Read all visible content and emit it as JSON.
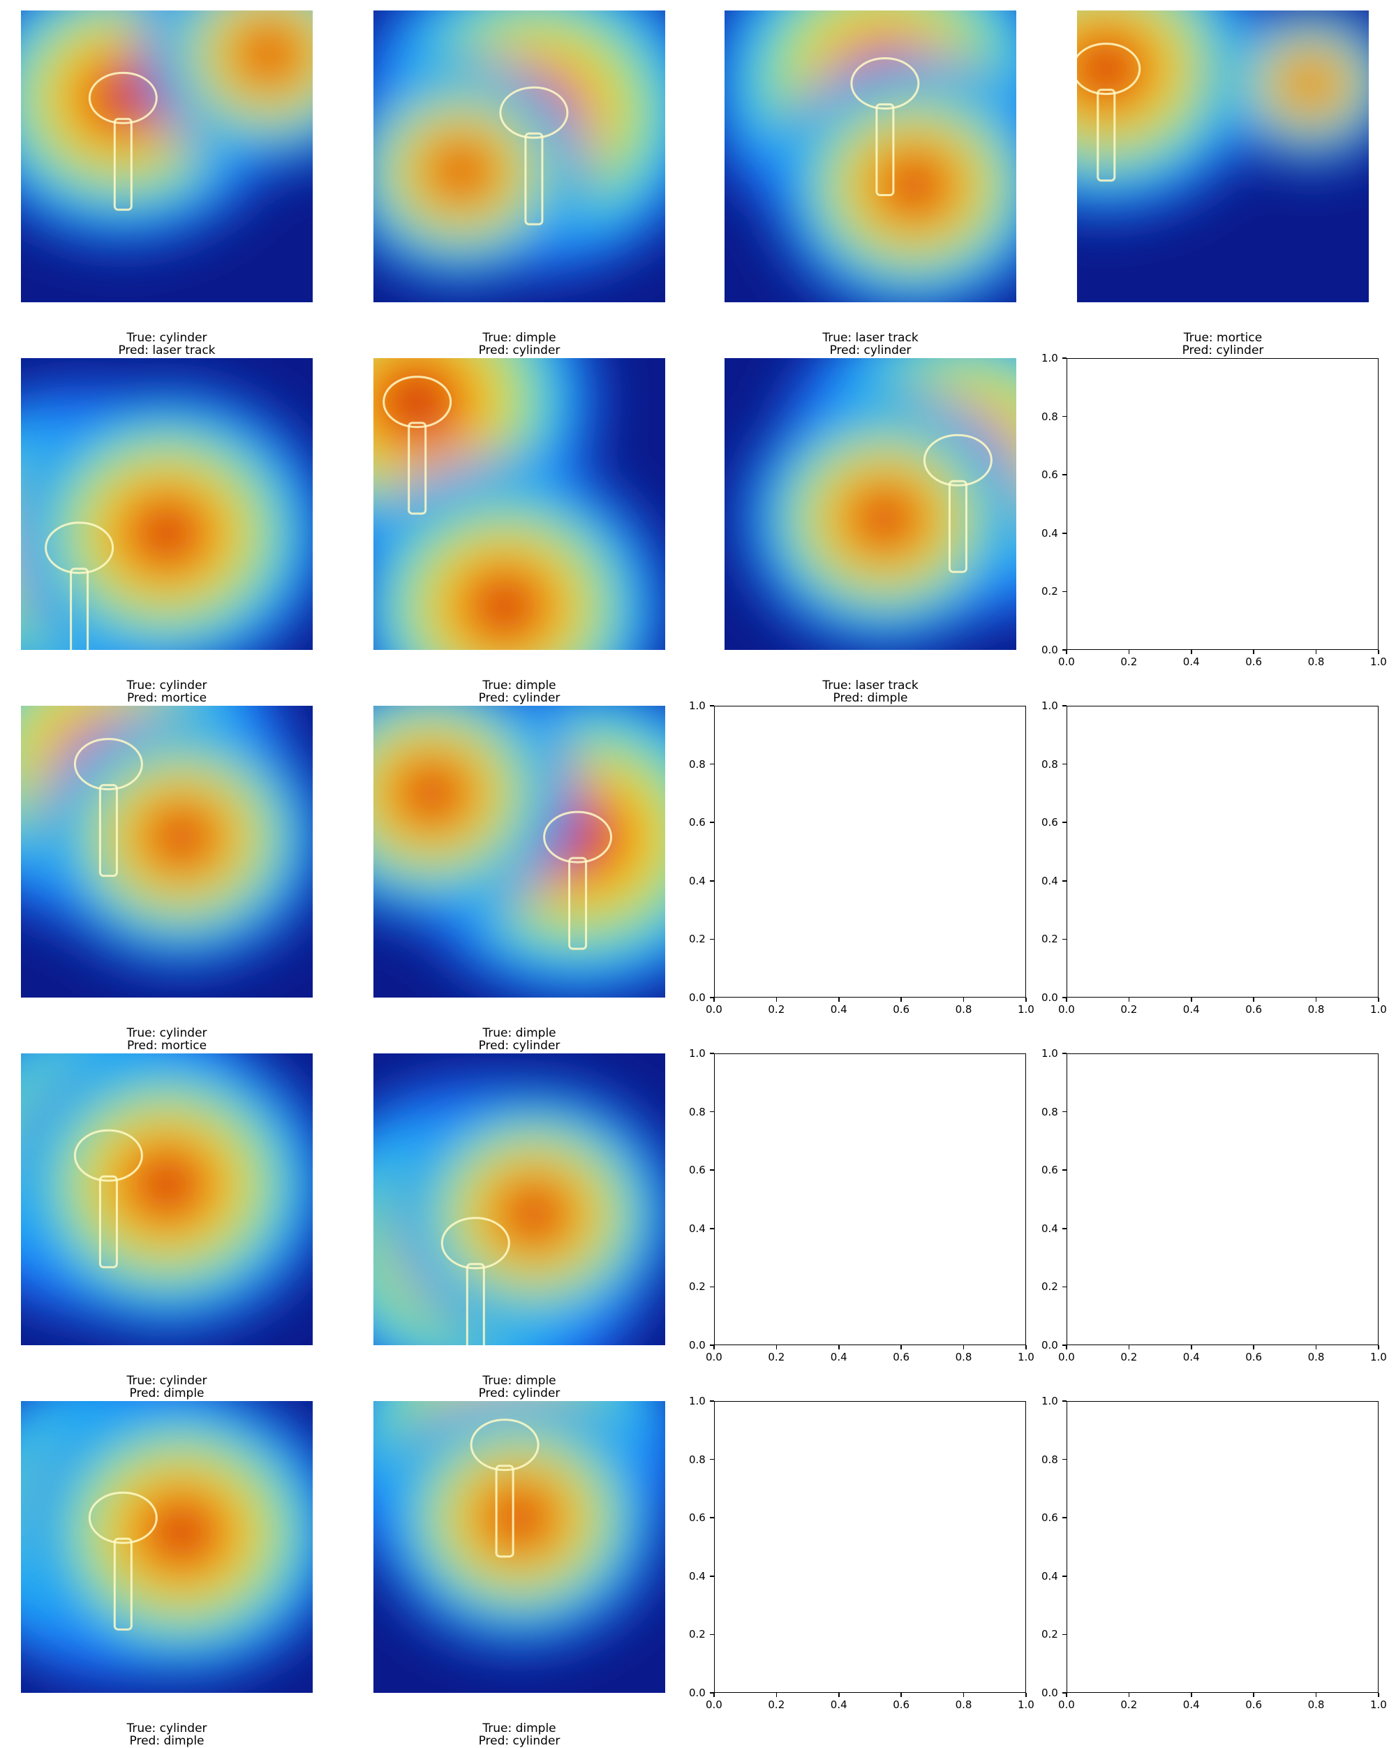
{
  "chart_data": {
    "type": "image-grid",
    "title": "",
    "layout": {
      "rows": 5,
      "cols": 4
    },
    "colormap": "jet",
    "heatmap_panels": [
      {
        "true_label": "True: cylinder",
        "pred_label": "Pred: laser track",
        "hot": [
          [
            0.35,
            0.3,
            0.9
          ],
          [
            0.85,
            0.15,
            0.7
          ]
        ]
      },
      {
        "true_label": "True: dimple",
        "pred_label": "Pred: cylinder",
        "hot": [
          [
            0.55,
            0.35,
            1.0
          ],
          [
            0.3,
            0.55,
            0.7
          ]
        ]
      },
      {
        "true_label": "True: laser track",
        "pred_label": "Pred: cylinder",
        "hot": [
          [
            0.55,
            0.25,
            1.0
          ],
          [
            0.65,
            0.6,
            0.8
          ]
        ]
      },
      {
        "true_label": "True: mortice",
        "pred_label": "Pred: cylinder",
        "hot": [
          [
            0.1,
            0.2,
            0.9
          ],
          [
            0.8,
            0.25,
            0.5
          ]
        ]
      },
      {
        "true_label": "True: cylinder",
        "pred_label": "Pred: mortice",
        "hot": [
          [
            0.2,
            0.65,
            1.0
          ],
          [
            0.5,
            0.6,
            0.9
          ]
        ]
      },
      {
        "true_label": "True: dimple",
        "pred_label": "Pred: cylinder",
        "hot": [
          [
            0.15,
            0.15,
            1.0
          ],
          [
            0.45,
            0.85,
            0.9
          ]
        ]
      },
      {
        "true_label": "True: laser track",
        "pred_label": "Pred: dimple",
        "hot": [
          [
            0.8,
            0.35,
            1.0
          ],
          [
            0.55,
            0.55,
            0.8
          ]
        ]
      },
      {
        "true_label": "True: cylinder",
        "pred_label": "Pred: mortice",
        "hot": [
          [
            0.3,
            0.2,
            1.0
          ],
          [
            0.55,
            0.45,
            0.8
          ]
        ]
      },
      {
        "true_label": "True: dimple",
        "pred_label": "Pred: cylinder",
        "hot": [
          [
            0.7,
            0.45,
            1.0
          ],
          [
            0.2,
            0.3,
            0.8
          ]
        ]
      },
      {
        "true_label": "True: cylinder",
        "pred_label": "Pred: dimple",
        "hot": [
          [
            0.3,
            0.35,
            1.0
          ],
          [
            0.5,
            0.45,
            0.9
          ]
        ]
      },
      {
        "true_label": "True: dimple",
        "pred_label": "Pred: cylinder",
        "hot": [
          [
            0.35,
            0.65,
            1.0
          ],
          [
            0.55,
            0.55,
            0.8
          ]
        ]
      },
      {
        "true_label": "True: cylinder",
        "pred_label": "Pred: dimple",
        "hot": [
          [
            0.35,
            0.4,
            1.0
          ],
          [
            0.55,
            0.45,
            0.9
          ]
        ]
      },
      {
        "true_label": "True: dimple",
        "pred_label": "Pred: cylinder",
        "hot": [
          [
            0.45,
            0.15,
            1.0
          ],
          [
            0.5,
            0.4,
            0.8
          ]
        ]
      }
    ],
    "empty_axes": {
      "xlim": [
        0.0,
        1.0
      ],
      "ylim": [
        0.0,
        1.0
      ],
      "x_ticks": [
        "0.0",
        "0.2",
        "0.4",
        "0.6",
        "0.8",
        "1.0"
      ],
      "y_ticks": [
        "0.0",
        "0.2",
        "0.4",
        "0.6",
        "0.8",
        "1.0"
      ],
      "count": 7
    }
  }
}
